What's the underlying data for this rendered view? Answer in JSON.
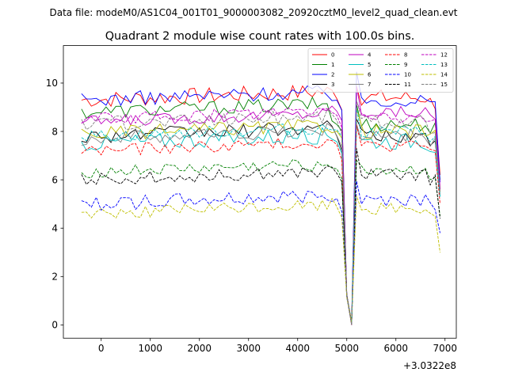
{
  "suptitle": "Data file: modeM0/AS1C04_001T01_9000003082_20920cztM0_level2_quad_clean.evt",
  "chart_data": {
    "type": "line",
    "title": "Quadrant 2 module wise count rates with 100.0s bins.",
    "xlabel": "",
    "ylabel": "",
    "x_offset_label": "+3.0322e8",
    "xlim": [
      -770,
      7230
    ],
    "ylim": [
      -0.55,
      11.55
    ],
    "xticks": [
      0,
      1000,
      2000,
      3000,
      4000,
      5000,
      6000,
      7000
    ],
    "yticks": [
      0,
      2,
      4,
      6,
      8,
      10
    ],
    "legend_position": "top-right",
    "x_start": -400,
    "x_step": 100,
    "series": [
      {
        "name": "0",
        "color": "#ff0000",
        "dash": "solid",
        "level": 9.3,
        "amp": 0.35,
        "mid": 9.6,
        "tail": 6.2
      },
      {
        "name": "1",
        "color": "#008000",
        "dash": "solid",
        "level": 8.8,
        "amp": 0.3,
        "mid": 8.5,
        "tail": 6.0
      },
      {
        "name": "2",
        "color": "#0000ff",
        "dash": "solid",
        "level": 9.3,
        "amp": 0.3,
        "mid": 9.5,
        "tail": 5.9
      },
      {
        "name": "3",
        "color": "#000000",
        "dash": "solid",
        "level": 7.8,
        "amp": 0.3,
        "mid": 8.0,
        "tail": 5.6
      },
      {
        "name": "4",
        "color": "#bf00bf",
        "dash": "solid",
        "level": 8.4,
        "amp": 0.25,
        "mid": 9.0,
        "tail": 5.7
      },
      {
        "name": "5",
        "color": "#00bfbf",
        "dash": "solid",
        "level": 7.5,
        "amp": 0.35,
        "mid": 7.8,
        "tail": 5.3
      },
      {
        "name": "6",
        "color": "#bfbf00",
        "dash": "solid",
        "level": 7.9,
        "amp": 0.3,
        "mid": 8.2,
        "tail": 5.5
      },
      {
        "name": "7",
        "color": "#808080",
        "dash": "solid",
        "level": 7.7,
        "amp": 0.3,
        "mid": 8.0,
        "tail": 5.4
      },
      {
        "name": "8",
        "color": "#ff0000",
        "dash": "dashed",
        "level": 7.2,
        "amp": 0.25,
        "mid": 7.6,
        "tail": 5.0
      },
      {
        "name": "9",
        "color": "#008000",
        "dash": "dashed",
        "level": 6.3,
        "amp": 0.25,
        "mid": 6.6,
        "tail": 4.5
      },
      {
        "name": "10",
        "color": "#0000ff",
        "dash": "dashed",
        "level": 5.0,
        "amp": 0.3,
        "mid": 5.4,
        "tail": 3.8
      },
      {
        "name": "11",
        "color": "#000000",
        "dash": "dashed",
        "level": 6.0,
        "amp": 0.25,
        "mid": 6.4,
        "tail": 4.4
      },
      {
        "name": "12",
        "color": "#bf00bf",
        "dash": "dashed",
        "level": 8.5,
        "amp": 0.25,
        "mid": 8.8,
        "tail": 5.6
      },
      {
        "name": "13",
        "color": "#00bfbf",
        "dash": "dashed",
        "level": 7.8,
        "amp": 0.25,
        "mid": 8.2,
        "tail": 5.3
      },
      {
        "name": "14",
        "color": "#bfbf00",
        "dash": "dashed",
        "level": 4.6,
        "amp": 0.25,
        "mid": 5.0,
        "tail": 3.0
      },
      {
        "name": "15",
        "color": "#808080",
        "dash": "dashed",
        "level": 8.3,
        "amp": 0.3,
        "mid": 8.6,
        "tail": 5.5
      }
    ],
    "dip": {
      "x_low": 5100,
      "y_low": 0.0,
      "x_peak": 5200,
      "x_end": 6900
    }
  }
}
